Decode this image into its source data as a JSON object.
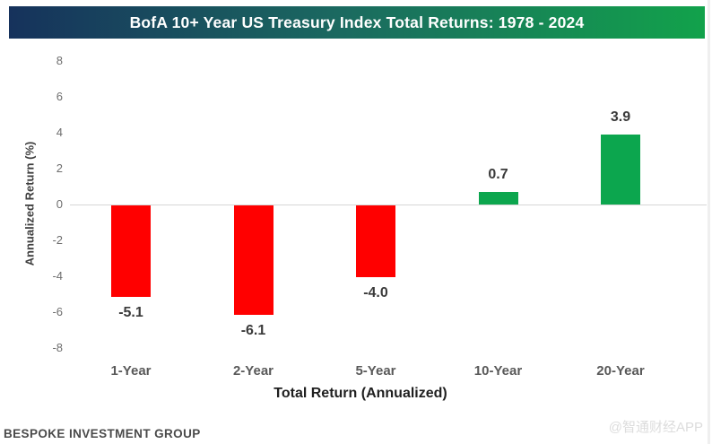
{
  "title": "BofA 10+ Year US Treasury Index Total Returns: 1978 - 2024",
  "title_bar_colors": {
    "left": "#16325C",
    "right": "#12A24B",
    "text": "#FFFFFF"
  },
  "chart_data": {
    "type": "bar",
    "title": "BofA 10+ Year US Treasury Index Total Returns: 1978 - 2024",
    "categories": [
      "1-Year",
      "2-Year",
      "5-Year",
      "10-Year",
      "20-Year"
    ],
    "values": [
      -5.1,
      -6.1,
      -4.0,
      0.7,
      3.9
    ],
    "value_labels": [
      "-5.1",
      "-6.1",
      "-4.0",
      "0.7",
      "3.9"
    ],
    "bar_colors": [
      "#FF0000",
      "#FF0000",
      "#FF0000",
      "#0CA64E",
      "#0CA64E"
    ],
    "colors": {
      "negative": "#FF0000",
      "positive": "#0CA64E"
    },
    "xlabel": "Total Return (Annualized)",
    "ylabel": "Annualized Return (%)",
    "ylim": [
      -8,
      8
    ],
    "yticks": [
      8,
      6,
      4,
      2,
      0,
      -2,
      -4,
      -6,
      -8
    ],
    "grid": false,
    "legend": false
  },
  "footer": {
    "source": "BESPOKE INVESTMENT GROUP"
  },
  "watermark": "@智通财经APP"
}
